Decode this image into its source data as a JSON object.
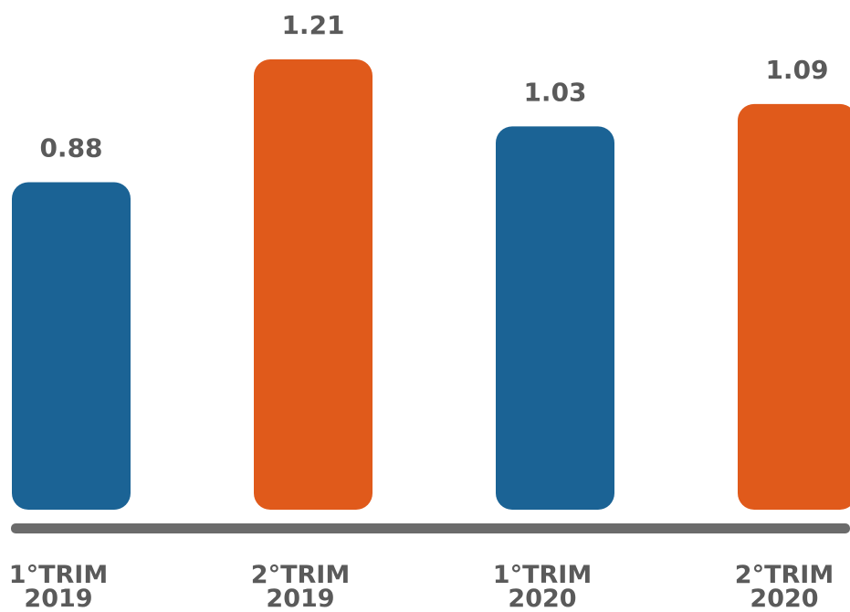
{
  "chart_data": {
    "type": "bar",
    "title": "",
    "xlabel": "",
    "ylabel": "",
    "categories": [
      [
        "1°TRIM",
        "2019"
      ],
      [
        "2°TRIM",
        "2019"
      ],
      [
        "1°TRIM",
        "2020"
      ],
      [
        "2°TRIM",
        "2020"
      ]
    ],
    "values": [
      0.88,
      1.21,
      1.03,
      1.09
    ],
    "value_labels": [
      "0.88",
      "1.21",
      "1.03",
      "1.09"
    ],
    "bar_colors": [
      "#1b6395",
      "#e05a1b",
      "#1b6395",
      "#e05a1b"
    ],
    "axis_color": "#6b6b6b",
    "ylim": [
      0,
      1.21
    ],
    "grid": false,
    "legend": "none"
  }
}
